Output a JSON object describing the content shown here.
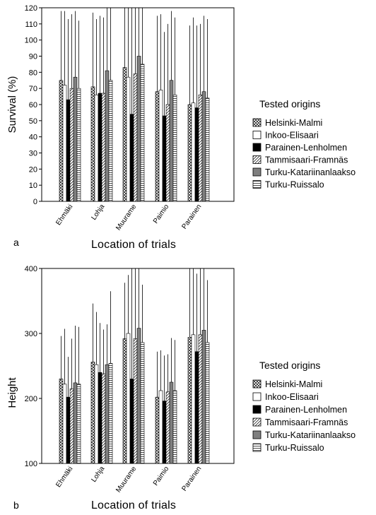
{
  "chart_data": [
    {
      "type": "bar",
      "panel_label": "a",
      "ylabel": "Survival (%)",
      "xlabel": "Location of trials",
      "ylim": [
        0,
        120
      ],
      "yticks": [
        0,
        10,
        20,
        30,
        40,
        50,
        60,
        70,
        80,
        90,
        100,
        110,
        120
      ],
      "categories": [
        "Ehmäki",
        "Lohja",
        "Muurame",
        "Paimio",
        "Parainen"
      ],
      "legend_title": "Tested origins",
      "legend_position": "right",
      "series": [
        {
          "name": "Helsinki-Malmi",
          "pattern": "crosshatch",
          "values": [
            75,
            71,
            83,
            68,
            60
          ],
          "upper": [
            118,
            117,
            120,
            115,
            109
          ]
        },
        {
          "name": "Inkoo-Elisaari",
          "pattern": "white",
          "values": [
            72,
            66,
            77,
            69,
            61
          ],
          "upper": [
            118,
            113,
            120,
            116,
            114
          ]
        },
        {
          "name": "Parainen-Lenholmen",
          "pattern": "black",
          "values": [
            63,
            67,
            54,
            53,
            58
          ],
          "upper": [
            113,
            115,
            120,
            105,
            109
          ]
        },
        {
          "name": "Tammisaari-Framnäs",
          "pattern": "diagonal",
          "values": [
            70,
            67,
            79,
            60,
            66
          ],
          "upper": [
            116,
            114,
            120,
            110,
            110
          ]
        },
        {
          "name": "Turku-Katariinanlaakso",
          "pattern": "gray",
          "values": [
            77,
            81,
            90,
            75,
            68
          ],
          "upper": [
            118,
            120,
            120,
            118,
            115
          ]
        },
        {
          "name": "Turku-Ruissalo",
          "pattern": "horizontal",
          "values": [
            70,
            75,
            85,
            66,
            64
          ],
          "upper": [
            112,
            120,
            120,
            114,
            113
          ]
        }
      ]
    },
    {
      "type": "bar",
      "panel_label": "b",
      "ylabel": "Height",
      "xlabel": "Location of trials",
      "ylim": [
        100,
        400
      ],
      "yticks": [
        100,
        200,
        300,
        400
      ],
      "categories": [
        "Ehmäki",
        "Lohja",
        "Muurame",
        "Paimio",
        "Parainen"
      ],
      "legend_title": "Tested origins",
      "legend_position": "right",
      "series": [
        {
          "name": "Helsinki-Malmi",
          "pattern": "crosshatch",
          "values": [
            230,
            256,
            292,
            202,
            294
          ],
          "upper": [
            296,
            346,
            378,
            272,
            400
          ]
        },
        {
          "name": "Inkoo-Elisaari",
          "pattern": "white",
          "values": [
            222,
            252,
            300,
            212,
            298
          ],
          "upper": [
            307,
            333,
            390,
            274,
            400
          ]
        },
        {
          "name": "Parainen-Lenholmen",
          "pattern": "black",
          "values": [
            202,
            240,
            230,
            196,
            272
          ],
          "upper": [
            264,
            316,
            400,
            266,
            392
          ]
        },
        {
          "name": "Tammisaari-Framnäs",
          "pattern": "diagonal",
          "values": [
            215,
            238,
            292,
            210,
            298
          ],
          "upper": [
            292,
            306,
            400,
            268,
            400
          ]
        },
        {
          "name": "Turku-Katariinanlaakso",
          "pattern": "gray",
          "values": [
            224,
            252,
            308,
            225,
            305
          ],
          "upper": [
            312,
            314,
            400,
            293,
            400
          ]
        },
        {
          "name": "Turku-Ruissalo",
          "pattern": "horizontal",
          "values": [
            222,
            254,
            286,
            212,
            286
          ],
          "upper": [
            310,
            365,
            375,
            290,
            382
          ]
        }
      ]
    }
  ]
}
